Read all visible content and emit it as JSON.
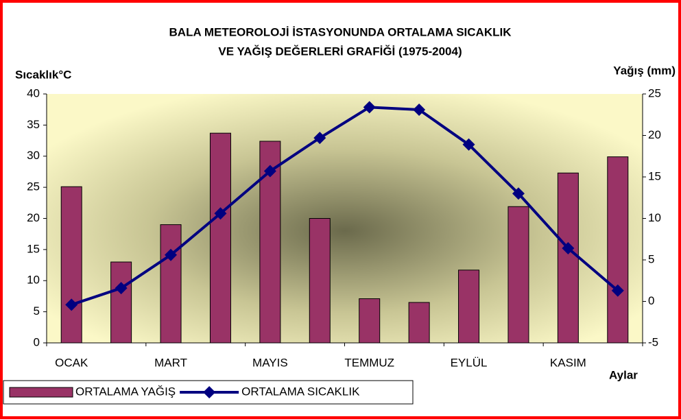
{
  "chart_data": {
    "type": "bar",
    "title": [
      "BALA METEOROLOJİ İSTASYONUNDA ORTALAMA SICAKLIK",
      "VE YAĞIŞ DEĞERLERİ GRAFİĞİ (1975-2004)"
    ],
    "y_label": "Sıcaklık°C",
    "y2_label": "Yağış (mm)",
    "x_label": "Aylar",
    "categories": [
      "OCAK",
      null,
      "MART",
      null,
      "MAYIS",
      null,
      "TEMMUZ",
      null,
      "EYLÜL",
      null,
      "KASIM",
      null
    ],
    "series": [
      {
        "name": "ORTALAMA YAĞIŞ",
        "type": "bar",
        "color": "#993366",
        "values": [
          25.1,
          13,
          19,
          33.7,
          32.4,
          20,
          7.1,
          6.5,
          11.7,
          21.9,
          27.3,
          29.9
        ]
      },
      {
        "name": "ORTALAMA SICAKLIK",
        "type": "line",
        "axis": "y2",
        "color": "#000080",
        "values": [
          -0.4,
          1.6,
          5.6,
          10.6,
          15.7,
          19.7,
          23.4,
          23.1,
          18.9,
          13.0,
          6.4,
          1.3
        ]
      }
    ],
    "ylim": [
      0,
      40
    ],
    "yticks": [
      0,
      5,
      10,
      15,
      20,
      25,
      30,
      35,
      40
    ],
    "y2lim": [
      -5,
      25
    ],
    "y2ticks": [
      -5,
      0,
      5,
      10,
      15,
      20,
      25
    ],
    "grid": false,
    "legend": "bottom-left"
  }
}
